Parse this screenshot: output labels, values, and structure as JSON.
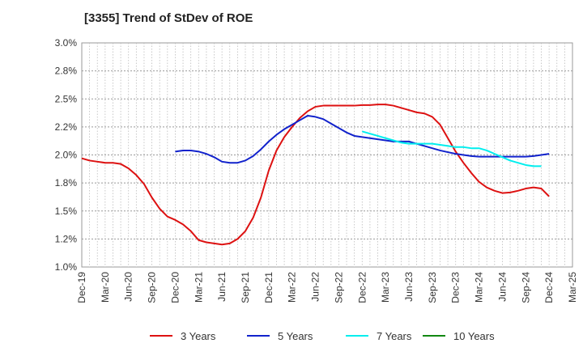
{
  "chart_data": {
    "type": "line",
    "title": "[3355]  Trend of StDev of ROE",
    "xlabel": "",
    "ylabel": "",
    "ylim": [
      1.0,
      3.0
    ],
    "y_ticks": [
      "1.0%",
      "1.2%",
      "1.5%",
      "1.8%",
      "2.0%",
      "2.2%",
      "2.5%",
      "2.8%",
      "3.0%"
    ],
    "x_ticks": [
      "Dec-19",
      "Mar-20",
      "Jun-20",
      "Sep-20",
      "Dec-20",
      "Mar-21",
      "Jun-21",
      "Sep-21",
      "Dec-21",
      "Mar-22",
      "Jun-22",
      "Sep-22",
      "Dec-22",
      "Mar-23",
      "Jun-23",
      "Sep-23",
      "Dec-23",
      "Mar-24",
      "Jun-24",
      "Sep-24",
      "Dec-24",
      "Mar-25"
    ],
    "grid": true,
    "legend_position": "bottom",
    "series": [
      {
        "name": "3 Years",
        "color": "#dd1111",
        "start_index": 0,
        "values": [
          1.97,
          1.95,
          1.94,
          1.93,
          1.93,
          1.92,
          1.88,
          1.82,
          1.74,
          1.62,
          1.52,
          1.45,
          1.42,
          1.38,
          1.32,
          1.24,
          1.22,
          1.21,
          1.2,
          1.21,
          1.25,
          1.32,
          1.44,
          1.62,
          1.86,
          2.04,
          2.16,
          2.25,
          2.33,
          2.39,
          2.43,
          2.44,
          2.44,
          2.44,
          2.44,
          2.44,
          2.445,
          2.445,
          2.45,
          2.45,
          2.44,
          2.42,
          2.4,
          2.38,
          2.37,
          2.34,
          2.27,
          2.15,
          2.03,
          1.93,
          1.84,
          1.76,
          1.71,
          1.68,
          1.66,
          1.665,
          1.68,
          1.7,
          1.71,
          1.7,
          1.63
        ]
      },
      {
        "name": "5 Years",
        "color": "#1122cc",
        "start_index": 12,
        "values": [
          2.03,
          2.04,
          2.04,
          2.03,
          2.01,
          1.98,
          1.94,
          1.93,
          1.93,
          1.95,
          1.99,
          2.05,
          2.12,
          2.18,
          2.23,
          2.27,
          2.31,
          2.35,
          2.34,
          2.32,
          2.28,
          2.24,
          2.2,
          2.17,
          2.16,
          2.15,
          2.14,
          2.13,
          2.12,
          2.12,
          2.12,
          2.1,
          2.08,
          2.06,
          2.04,
          2.025,
          2.01,
          2.0,
          1.99,
          1.985,
          1.985,
          1.985,
          1.985,
          1.985,
          1.985,
          1.985,
          1.99,
          2.0,
          2.01
        ]
      },
      {
        "name": "7 Years",
        "color": "#00eeee",
        "start_index": 36,
        "values": [
          2.21,
          2.19,
          2.17,
          2.15,
          2.13,
          2.11,
          2.1,
          2.1,
          2.1,
          2.1,
          2.09,
          2.08,
          2.07,
          2.07,
          2.06,
          2.06,
          2.04,
          2.01,
          1.98,
          1.95,
          1.93,
          1.91,
          1.9,
          1.9
        ]
      },
      {
        "name": "10 Years",
        "color": "#118811",
        "start_index": 0,
        "values": []
      }
    ]
  }
}
